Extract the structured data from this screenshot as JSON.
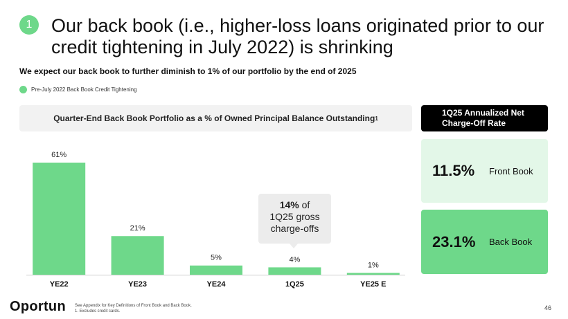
{
  "slide": {
    "number": "1",
    "title": "Our back book (i.e., higher-loss loans originated prior to our credit tightening in July 2022) is shrinking",
    "subtitle": "We expect our back book to further diminish to 1% of our portfolio by the end of 2025",
    "legend_label": "Pre-July 2022 Back Book Credit Tightening",
    "chart_header": "Quarter-End Back Book Portfolio as a % of Owned Principal Balance Outstanding",
    "chart_header_footnote": "1",
    "callout_bold": "14%",
    "callout_rest_1": "of",
    "callout_line2": "1Q25 gross",
    "callout_line3": "charge-offs",
    "panel_header": "1Q25 Annualized Net Charge-Off Rate",
    "front_value": "11.5%",
    "front_label": "Front Book",
    "back_value": "23.1%",
    "back_label": "Back Book",
    "logo": "Oportun",
    "footnote_1": "See Appendix for Key Definitions of Front Book and Back Book.",
    "footnote_2": "1.     Excludes credit cards.",
    "page_number": "46"
  },
  "colors": {
    "accent_green": "#6ed88a",
    "light_green": "#e3f7e8",
    "header_gray": "#f2f2f2",
    "black": "#000000"
  },
  "chart_data": {
    "type": "bar",
    "title": "Quarter-End Back Book Portfolio as a % of Owned Principal Balance Outstanding",
    "categories": [
      "YE22",
      "YE23",
      "YE24",
      "1Q25",
      "YE25 E"
    ],
    "values": [
      61,
      21,
      5,
      4,
      1
    ],
    "value_labels": [
      "61%",
      "21%",
      "5%",
      "4%",
      "1%"
    ],
    "series": [
      {
        "name": "Pre-July 2022 Back Book Credit Tightening",
        "values": [
          61,
          21,
          5,
          4,
          1
        ]
      }
    ],
    "ylim": [
      0,
      61
    ],
    "grid": false,
    "legend_position": "top-left"
  }
}
